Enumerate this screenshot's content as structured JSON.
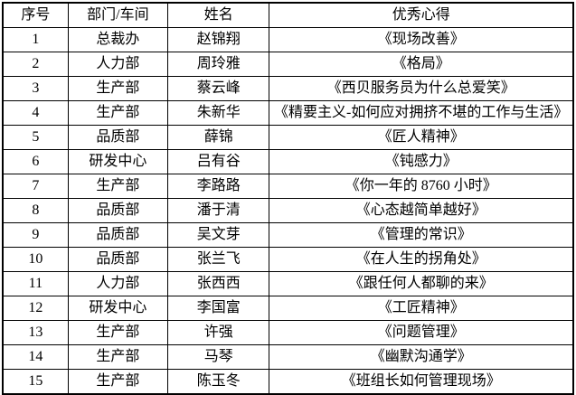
{
  "colors": {
    "border": "#000000",
    "text": "#000000",
    "background": "#ffffff"
  },
  "table": {
    "columns": [
      {
        "key": "no",
        "label": "序号"
      },
      {
        "key": "dept",
        "label": "部门/车间"
      },
      {
        "key": "name",
        "label": "姓名"
      },
      {
        "key": "title",
        "label": "优秀心得"
      }
    ],
    "rows": [
      {
        "no": "1",
        "dept": "总裁办",
        "name": "赵锦翔",
        "title": "《现场改善》"
      },
      {
        "no": "2",
        "dept": "人力部",
        "name": "周玲雅",
        "title": "《格局》"
      },
      {
        "no": "3",
        "dept": "生产部",
        "name": "蔡云峰",
        "title": "《西贝服务员为什么总爱笑》"
      },
      {
        "no": "4",
        "dept": "生产部",
        "name": "朱新华",
        "title": "《精要主义-如何应对拥挤不堪的工作与生活》"
      },
      {
        "no": "5",
        "dept": "品质部",
        "name": "薛锦",
        "title": "《匠人精神》"
      },
      {
        "no": "6",
        "dept": "研发中心",
        "name": "吕有谷",
        "title": "《钝感力》"
      },
      {
        "no": "7",
        "dept": "生产部",
        "name": "李路路",
        "title": "《你一年的 8760 小时》"
      },
      {
        "no": "8",
        "dept": "品质部",
        "name": "潘于清",
        "title": "《心态越简单越好》"
      },
      {
        "no": "9",
        "dept": "品质部",
        "name": "吴文芽",
        "title": "《管理的常识》"
      },
      {
        "no": "10",
        "dept": "品质部",
        "name": "张兰飞",
        "title": "《在人生的拐角处》"
      },
      {
        "no": "11",
        "dept": "人力部",
        "name": "张西西",
        "title": "《跟任何人都聊的来》"
      },
      {
        "no": "12",
        "dept": "研发中心",
        "name": "李国富",
        "title": "《工匠精神》"
      },
      {
        "no": "13",
        "dept": "生产部",
        "name": "许强",
        "title": "《问题管理》"
      },
      {
        "no": "14",
        "dept": "生产部",
        "name": "马琴",
        "title": "《幽默沟通学》"
      },
      {
        "no": "15",
        "dept": "生产部",
        "name": "陈玉冬",
        "title": "《班组长如何管理现场》"
      }
    ]
  }
}
